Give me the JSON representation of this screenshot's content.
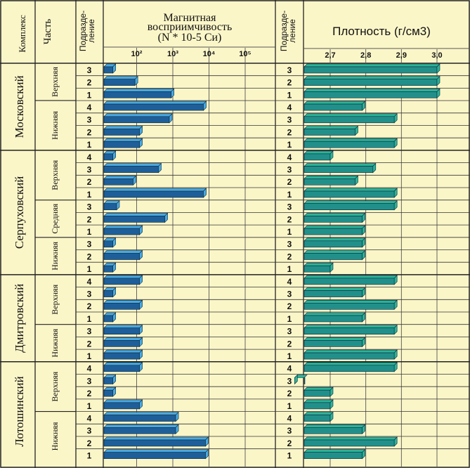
{
  "header": {
    "complex_label": "Комплекс",
    "part_label": "Часть",
    "sub_label_line1": "Подразде-",
    "sub_label_line2": "ление",
    "magnetic_title_line1": "Магнитная",
    "magnetic_title_line2": "восприимчивость",
    "magnetic_title_line3": "(N * 10-5 Си)",
    "density_title": "Плотность (г/см3)"
  },
  "colors": {
    "background": "#fbf6c8",
    "grid": "#222222",
    "magnetic_bar": "#1e5f9a",
    "magnetic_bar_end": "#4aa9df",
    "density_bar": "#22908a",
    "density_bar_end": "#2bb497"
  },
  "chart_data": [
    {
      "type": "bar",
      "orientation": "horizontal",
      "title": "Магнитная восприимчивость (N * 10-5 Си)",
      "scale": "log",
      "xlim": [
        10,
        100000
      ],
      "tick_labels": [
        "10²",
        "10³",
        "10⁴",
        "10⁵"
      ],
      "tick_values": [
        100,
        1000,
        10000,
        100000
      ],
      "grid": true,
      "series": [
        {
          "values": [
            22,
            90,
            900,
            7000,
            800,
            120,
            120,
            22,
            400,
            80,
            7000,
            28,
            600,
            120,
            22,
            120,
            22,
            120,
            22,
            120,
            22,
            120,
            120,
            120,
            120,
            22,
            22,
            120,
            1200,
            1200,
            8000,
            8000
          ]
        }
      ]
    },
    {
      "type": "bar",
      "orientation": "horizontal",
      "title": "Плотность (г/см3)",
      "xlim": [
        2.6,
        3.06
      ],
      "tick_labels": [
        "2,7",
        "2,8",
        "2,9",
        "3,0"
      ],
      "tick_values": [
        2.7,
        2.8,
        2.9,
        3.0
      ],
      "grid": true,
      "series": [
        {
          "values": [
            3.0,
            3.0,
            3.0,
            2.79,
            2.88,
            2.77,
            2.88,
            2.7,
            2.82,
            2.77,
            2.88,
            2.88,
            2.79,
            2.79,
            2.79,
            2.79,
            2.7,
            2.88,
            2.79,
            2.88,
            2.79,
            2.88,
            2.79,
            2.88,
            2.88,
            2.6,
            2.7,
            2.7,
            2.7,
            2.79,
            2.88,
            2.79
          ]
        }
      ]
    }
  ],
  "rows": {
    "subdivisions": [
      "3",
      "2",
      "1",
      "4",
      "3",
      "2",
      "1",
      "4",
      "3",
      "2",
      "1",
      "3",
      "2",
      "1",
      "3",
      "2",
      "1",
      "4",
      "3",
      "2",
      "1",
      "3",
      "2",
      "1",
      "4",
      "3",
      "2",
      "1",
      "4",
      "3",
      "2",
      "1"
    ]
  },
  "complexes": [
    {
      "name": "Московский",
      "rows": 7
    },
    {
      "name": "Серпуховский",
      "rows": 10
    },
    {
      "name": "Дмитровский",
      "rows": 7
    },
    {
      "name": "Лотошинский",
      "rows": 8
    }
  ],
  "parts": [
    {
      "name": "Верхняя",
      "rows": 3
    },
    {
      "name": "Нижняя",
      "rows": 4
    },
    {
      "name": "Верхняя",
      "rows": 4
    },
    {
      "name": "Средняя",
      "rows": 3
    },
    {
      "name": "Нижняя",
      "rows": 3
    },
    {
      "name": "Верхняя",
      "rows": 4
    },
    {
      "name": "Нижняя",
      "rows": 3
    },
    {
      "name": "Верхняя",
      "rows": 4
    },
    {
      "name": "Нижняя",
      "rows": 4
    }
  ]
}
